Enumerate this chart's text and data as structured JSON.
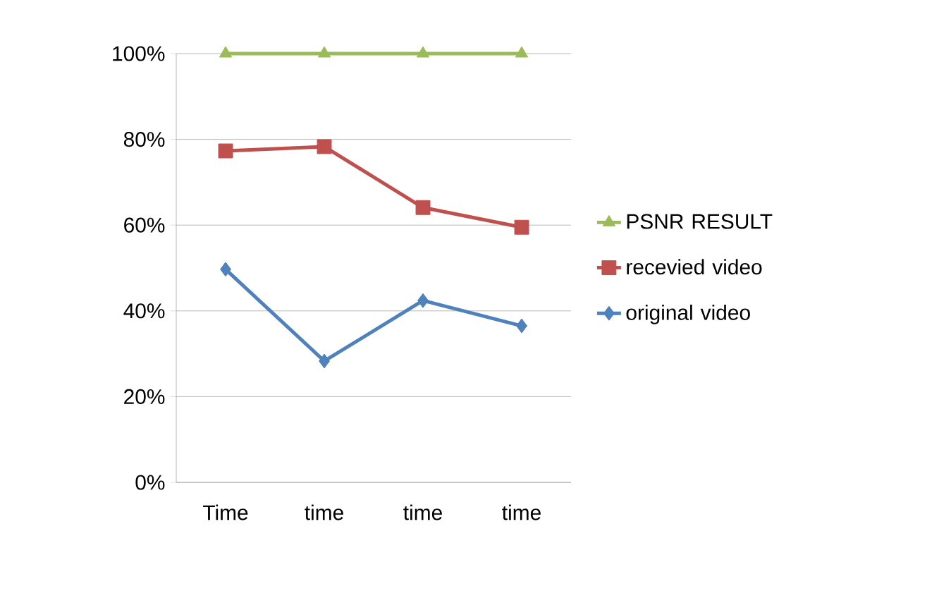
{
  "chart_data": {
    "type": "line",
    "categories": [
      "Time",
      "time",
      "time",
      "time"
    ],
    "series": [
      {
        "name": "PSNR RESULT",
        "color": "#9bbb59",
        "marker": "triangle",
        "values": [
          100,
          100,
          100,
          100
        ]
      },
      {
        "name": "recevied video",
        "color": "#c0504d",
        "marker": "square",
        "values": [
          77.3,
          78.3,
          64.1,
          59.5
        ]
      },
      {
        "name": "original video",
        "color": "#4f81bd",
        "marker": "diamond",
        "values": [
          49.7,
          28.3,
          42.4,
          36.5
        ]
      }
    ],
    "ylim": [
      0,
      100
    ],
    "yticks": [
      {
        "value": 0,
        "label": "0%"
      },
      {
        "value": 20,
        "label": "20%"
      },
      {
        "value": 40,
        "label": "40%"
      },
      {
        "value": 60,
        "label": "60%"
      },
      {
        "value": 80,
        "label": "80%"
      },
      {
        "value": 100,
        "label": "100%"
      }
    ],
    "grid": "y",
    "legend": "right"
  }
}
